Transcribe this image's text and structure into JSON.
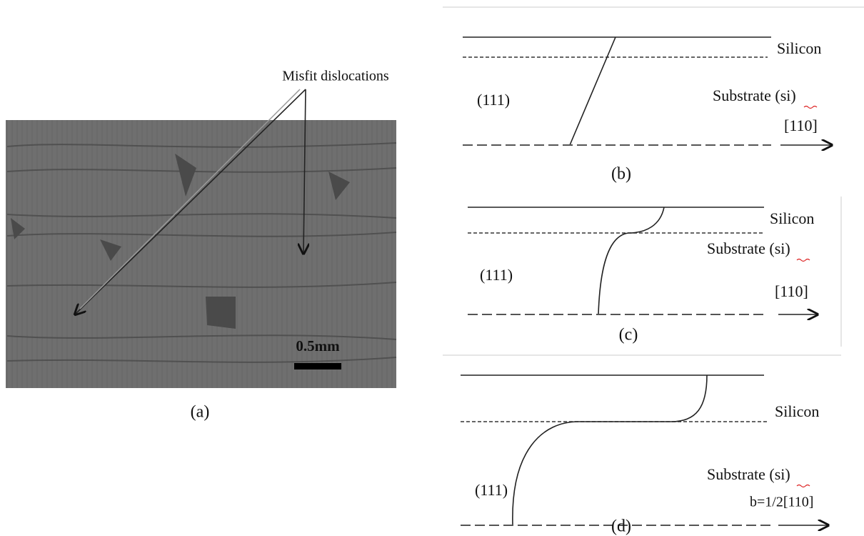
{
  "panel_a": {
    "annotation": "Misfit dislocations",
    "scale_bar": "0.5mm",
    "caption": "(a)"
  },
  "panel_b": {
    "top_label": "Silicon",
    "plane": "(111)",
    "bottom_label": "Substrate (si)",
    "direction": "[110]",
    "caption": "(b)"
  },
  "panel_c": {
    "top_label": "Silicon",
    "plane": "(111)",
    "bottom_label": "Substrate (si)",
    "direction": "[110]",
    "caption": "(c)"
  },
  "panel_d": {
    "top_label": "Silicon",
    "plane": "(111)",
    "bottom_label": "Substrate (si)",
    "direction": "b=1/2[110]",
    "caption": "(d)"
  }
}
